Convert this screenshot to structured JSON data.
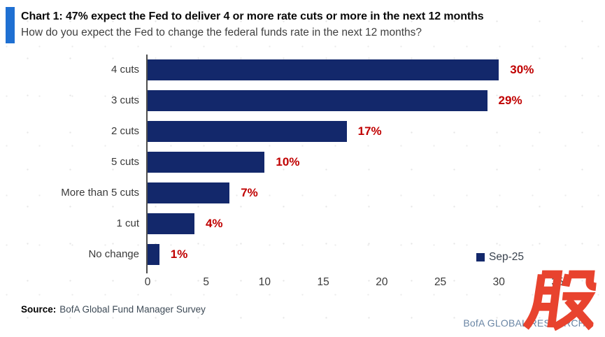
{
  "chart_data": {
    "type": "bar",
    "orientation": "horizontal",
    "title": "Chart 1: 47% expect the Fed to deliver 4 or more rate cuts or more in the next 12 months",
    "subtitle": "How do you expect the Fed to change the federal funds rate in the next 12 months?",
    "categories": [
      "4 cuts",
      "3 cuts",
      "2 cuts",
      "5 cuts",
      "More than 5 cuts",
      "1 cut",
      "No change"
    ],
    "series": [
      {
        "name": "Sep-25",
        "values": [
          30,
          29,
          17,
          10,
          7,
          4,
          1
        ],
        "value_labels": [
          "30%",
          "29%",
          "17%",
          "10%",
          "7%",
          "4%",
          "1%"
        ],
        "color": "#13286B"
      }
    ],
    "xlim": [
      0,
      35
    ],
    "x_ticks": [
      0,
      5,
      10,
      15,
      20,
      25,
      30,
      35
    ],
    "xlabel": "",
    "ylabel": "",
    "grid": false,
    "legend_position": "right-middle",
    "value_label_color": "#C00000",
    "axis_line_color": "#4d4d4d"
  },
  "header": {
    "accent_color": "#1F70D2"
  },
  "footer": {
    "source_label": "Source:",
    "source_text": "BofA Global Fund Manager Survey",
    "brand": "BofA GLOBAL RESEARCH",
    "brand_color": "#6A86A5"
  },
  "watermark": {
    "text": "股",
    "color": "#E8432E"
  }
}
